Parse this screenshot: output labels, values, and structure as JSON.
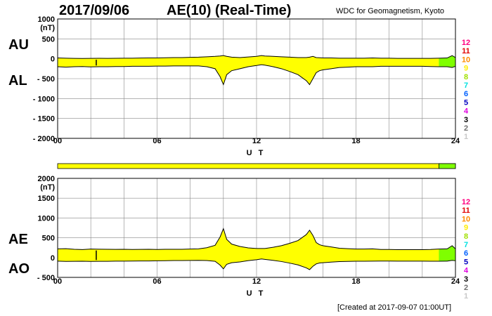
{
  "header": {
    "date": "2017/09/06",
    "title": "AE(10) (Real-Time)",
    "org": "WDC for Geomagnetism, Kyoto"
  },
  "footer": {
    "created": "[Created at 2017-09-07 01:00UT]"
  },
  "colors": {
    "fill": "#ffff00",
    "green": "#7fff00",
    "grid": "#888888"
  },
  "legend": {
    "labels": [
      "12",
      "11",
      "10",
      "9",
      "8",
      "7",
      "6",
      "5",
      "4",
      "3",
      "2",
      "1"
    ],
    "colors": [
      "#ff0080",
      "#e00000",
      "#ff8c00",
      "#ffee00",
      "#a0e000",
      "#00e0e0",
      "#0060ff",
      "#0000c0",
      "#e000e0",
      "#000000",
      "#707070",
      "#c8c8c8"
    ]
  },
  "chart_data": [
    {
      "type": "area",
      "series": [
        {
          "name": "AU"
        },
        {
          "name": "AL"
        }
      ],
      "xlabel": "U T",
      "unit": "(nT)",
      "xlim": [
        0,
        24
      ],
      "ylim": [
        -2000,
        1000
      ],
      "xticks": [
        "00",
        "06",
        "12",
        "18",
        "24"
      ],
      "yticks": [
        "1000",
        "500",
        "0",
        "- 500",
        "- 1000",
        "- 1500",
        "- 2000"
      ],
      "x": [
        0,
        0.5,
        1,
        1.5,
        2,
        2.5,
        3,
        3.5,
        4,
        4.5,
        5,
        5.5,
        6,
        6.5,
        7,
        7.5,
        8,
        8.5,
        9,
        9.5,
        9.8,
        10,
        10.2,
        10.5,
        11,
        11.5,
        12,
        12.3,
        12.5,
        13,
        13.5,
        14,
        14.5,
        15,
        15.2,
        15.4,
        15.6,
        15.8,
        16,
        16.5,
        17,
        17.5,
        18,
        18.5,
        19,
        19.5,
        20,
        20.5,
        21,
        21.5,
        22,
        22.5,
        23,
        23.5,
        23.8,
        24
      ],
      "AU": [
        20,
        15,
        10,
        8,
        10,
        12,
        10,
        12,
        15,
        15,
        18,
        20,
        20,
        25,
        30,
        30,
        35,
        40,
        50,
        60,
        70,
        80,
        60,
        40,
        30,
        45,
        60,
        80,
        70,
        60,
        50,
        40,
        30,
        30,
        40,
        60,
        30,
        25,
        20,
        20,
        15,
        15,
        15,
        15,
        20,
        15,
        15,
        10,
        10,
        10,
        10,
        10,
        15,
        20,
        80,
        30
      ],
      "AL": [
        -200,
        -210,
        -200,
        -195,
        -205,
        -200,
        -200,
        -195,
        -195,
        -190,
        -190,
        -190,
        -185,
        -185,
        -180,
        -180,
        -180,
        -180,
        -200,
        -250,
        -450,
        -650,
        -400,
        -300,
        -250,
        -200,
        -170,
        -150,
        -160,
        -200,
        -250,
        -320,
        -400,
        -550,
        -650,
        -500,
        -350,
        -300,
        -280,
        -250,
        -220,
        -210,
        -200,
        -200,
        -200,
        -190,
        -190,
        -190,
        -190,
        -190,
        -190,
        -195,
        -200,
        -200,
        -220,
        -190
      ]
    },
    {
      "type": "area",
      "series": [
        {
          "name": "AE"
        },
        {
          "name": "AO"
        }
      ],
      "xlabel": "U T",
      "unit": "(nT)",
      "xlim": [
        0,
        24
      ],
      "ylim": [
        -500,
        2000
      ],
      "xticks": [
        "00",
        "06",
        "12",
        "18",
        "24"
      ],
      "yticks": [
        "2000",
        "1500",
        "1000",
        "500",
        "0",
        "- 500"
      ],
      "x": [
        0,
        0.5,
        1,
        1.5,
        2,
        2.5,
        3,
        3.5,
        4,
        4.5,
        5,
        5.5,
        6,
        6.5,
        7,
        7.5,
        8,
        8.5,
        9,
        9.5,
        9.8,
        10,
        10.2,
        10.5,
        11,
        11.5,
        12,
        12.3,
        12.5,
        13,
        13.5,
        14,
        14.5,
        15,
        15.2,
        15.4,
        15.6,
        15.8,
        16,
        16.5,
        17,
        17.5,
        18,
        18.5,
        19,
        19.5,
        20,
        20.5,
        21,
        21.5,
        22,
        22.5,
        23,
        23.5,
        23.8,
        24
      ],
      "AE": [
        220,
        225,
        210,
        203,
        215,
        212,
        210,
        207,
        210,
        205,
        208,
        210,
        205,
        210,
        210,
        210,
        215,
        220,
        250,
        310,
        520,
        730,
        460,
        340,
        280,
        245,
        230,
        230,
        230,
        260,
        300,
        360,
        430,
        580,
        690,
        560,
        380,
        325,
        300,
        270,
        235,
        225,
        215,
        215,
        220,
        205,
        205,
        200,
        200,
        200,
        200,
        205,
        215,
        220,
        300,
        220
      ],
      "AO": [
        -90,
        -97,
        -95,
        -93,
        -97,
        -94,
        -95,
        -91,
        -90,
        -87,
        -86,
        -85,
        -82,
        -80,
        -75,
        -75,
        -72,
        -70,
        -75,
        -95,
        -190,
        -285,
        -170,
        -130,
        -110,
        -77,
        -55,
        -35,
        -45,
        -70,
        -100,
        -140,
        -185,
        -260,
        -305,
        -220,
        -160,
        -137,
        -130,
        -115,
        -102,
        -97,
        -92,
        -92,
        -90,
        -87,
        -87,
        -90,
        -90,
        -90,
        -90,
        -92,
        -92,
        -90,
        -70,
        -80
      ]
    }
  ]
}
